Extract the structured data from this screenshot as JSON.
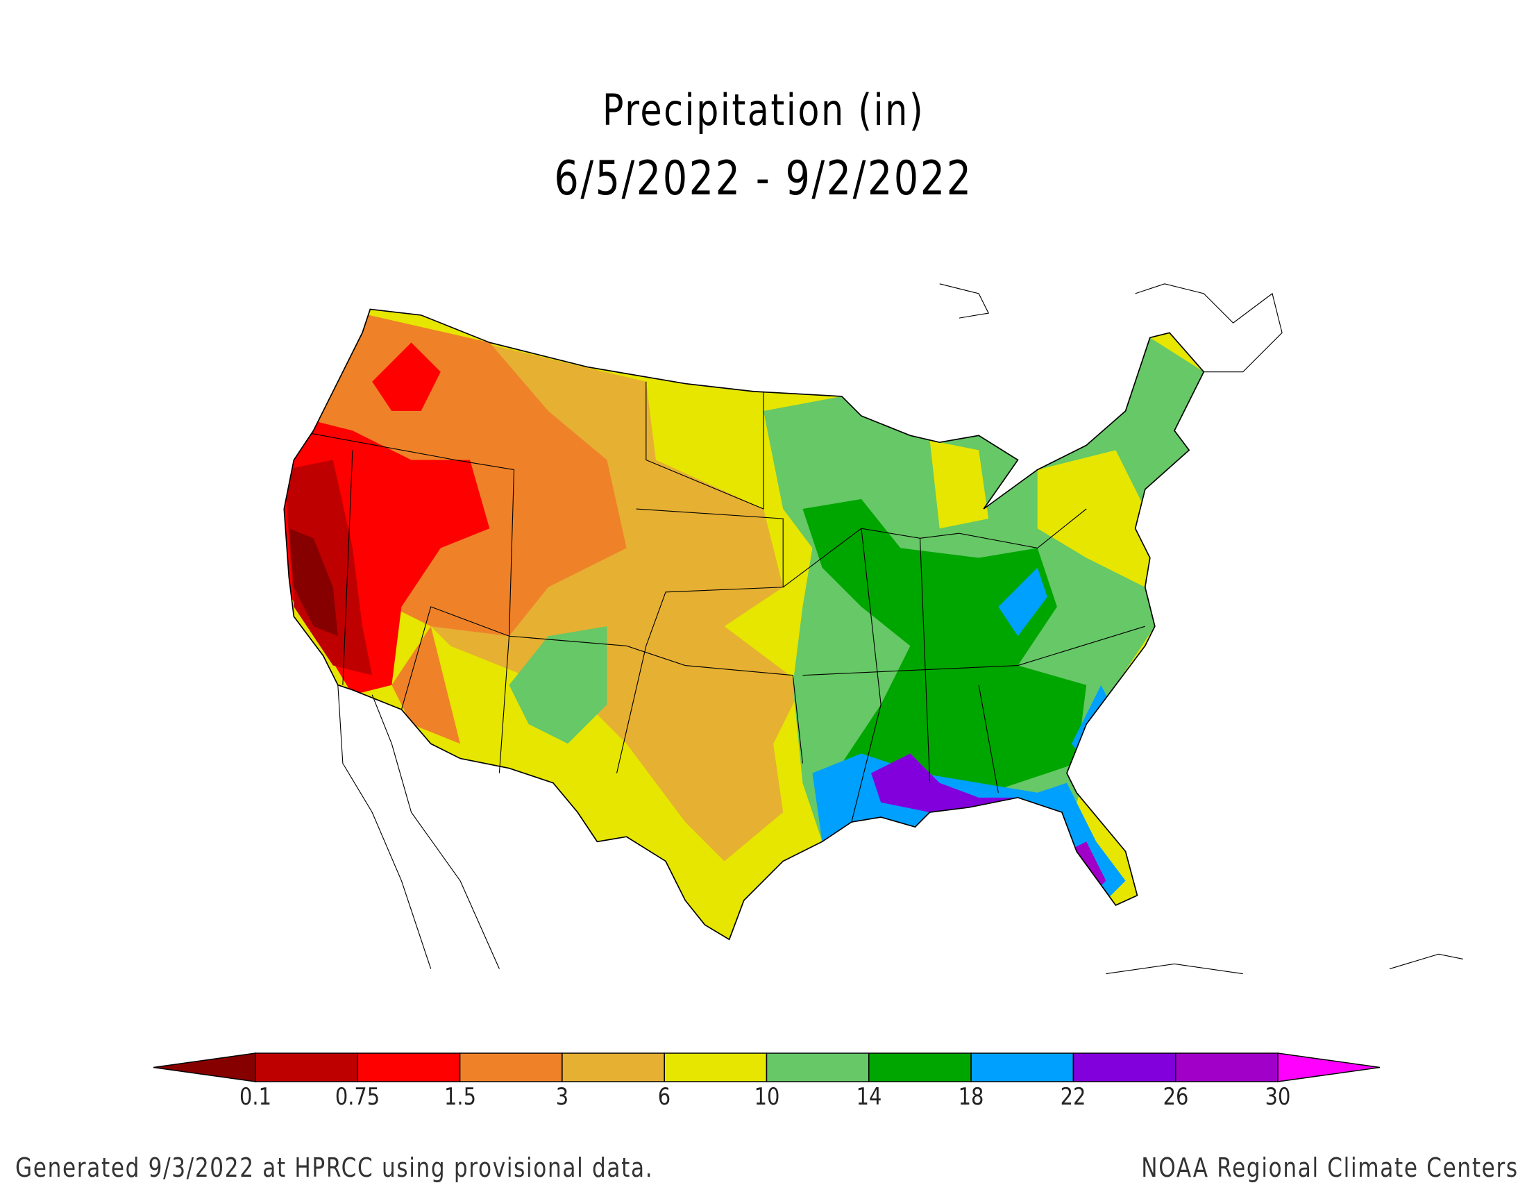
{
  "title": "Precipitation (in)",
  "subtitle": "6/5/2022 - 9/2/2022",
  "legend": {
    "labels": [
      "0.1",
      "0.75",
      "1.5",
      "3",
      "6",
      "10",
      "14",
      "18",
      "22",
      "26",
      "30"
    ],
    "colors": [
      "#870000",
      "#bf0000",
      "#ff0000",
      "#ef8228",
      "#e6b032",
      "#e6e600",
      "#66c866",
      "#00a600",
      "#00a0ff",
      "#8200dc",
      "#a000c8",
      "#ff00ff"
    ]
  },
  "footer": {
    "left": "Generated 9/3/2022 at HPRCC using provisional data.",
    "right": "NOAA Regional Climate Centers"
  }
}
